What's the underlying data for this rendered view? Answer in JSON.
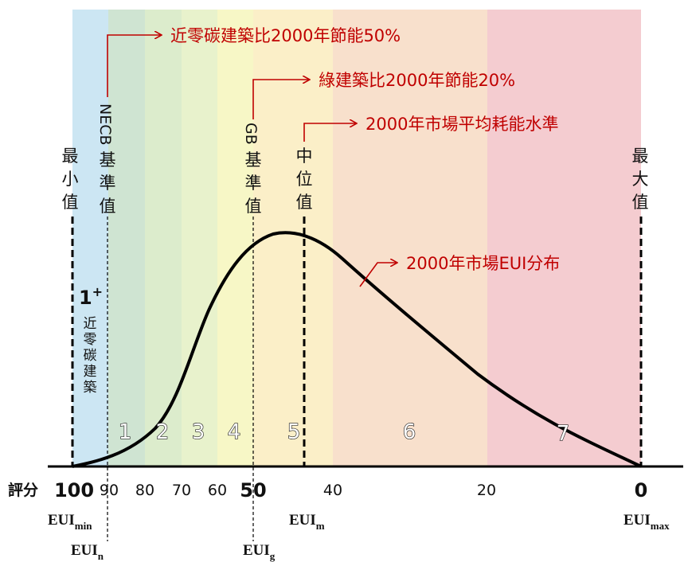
{
  "bands": [
    {
      "label": "1+",
      "color": "#cce6f3"
    },
    {
      "label": "1",
      "color": "#cfe4d2"
    },
    {
      "label": "2",
      "color": "#dceccc"
    },
    {
      "label": "3",
      "color": "#e8f2cc"
    },
    {
      "label": "4",
      "color": "#f7f7c6"
    },
    {
      "label": "5",
      "color": "#fbefc8"
    },
    {
      "label": "6",
      "color": "#f8e0cc"
    },
    {
      "label": "7",
      "color": "#f4ccd0"
    }
  ],
  "grade_label_1plus": {
    "main": "1",
    "sup": "+",
    "sub_chars": [
      "近",
      "零",
      "碳",
      "建",
      "築"
    ]
  },
  "vertical_labels": {
    "min": [
      "最",
      "小",
      "值"
    ],
    "necb": [
      "NECB",
      "基",
      "準",
      "值"
    ],
    "gb": [
      "GB",
      "基",
      "準",
      "值"
    ],
    "median": [
      "中",
      "位",
      "值"
    ],
    "max": [
      "最",
      "大",
      "值"
    ]
  },
  "callouts": {
    "near_zero": "近零碳建築比2000年節能50%",
    "green": "綠建築比2000年節能20%",
    "market_avg": "2000年市場平均耗能水準",
    "eui_dist": "2000年市場EUI分布"
  },
  "axis": {
    "score_label": "評分",
    "ticks": [
      "100",
      "90",
      "80",
      "70",
      "60",
      "50",
      "40",
      "20",
      "0"
    ],
    "eui_min": {
      "base": "EUI",
      "sub": "min"
    },
    "eui_n": {
      "base": "EUI",
      "sub": "n"
    },
    "eui_g": {
      "base": "EUI",
      "sub": "g"
    },
    "eui_m": {
      "base": "EUI",
      "sub": "m"
    },
    "eui_max": {
      "base": "EUI",
      "sub": "max"
    }
  },
  "colors": {
    "callout_red": "#c00000",
    "curve": "#000000"
  }
}
